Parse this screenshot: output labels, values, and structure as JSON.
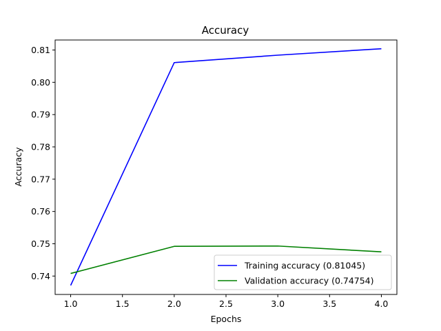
{
  "chart_data": {
    "type": "line",
    "title": "Accuracy",
    "xlabel": "Epochs",
    "ylabel": "Accuracy",
    "xlim": [
      0.85,
      4.15
    ],
    "ylim": [
      0.7343,
      0.8131
    ],
    "xticks": [
      1.0,
      1.5,
      2.0,
      2.5,
      3.0,
      3.5,
      4.0
    ],
    "xtick_labels": [
      "1.0",
      "1.5",
      "2.0",
      "2.5",
      "3.0",
      "3.5",
      "4.0"
    ],
    "yticks": [
      0.74,
      0.75,
      0.76,
      0.77,
      0.78,
      0.79,
      0.8,
      0.81
    ],
    "ytick_labels": [
      "0.74",
      "0.75",
      "0.76",
      "0.77",
      "0.78",
      "0.79",
      "0.80",
      "0.81"
    ],
    "grid": false,
    "legend_position": "lower-right",
    "x": [
      1,
      2,
      3,
      4
    ],
    "series": [
      {
        "name": "Training accuracy (0.81045)",
        "color": "#0000ff",
        "values": [
          0.7371,
          0.8061,
          0.8084,
          0.8104
        ]
      },
      {
        "name": "Validation accuracy (0.74754)",
        "color": "#008000",
        "values": [
          0.7408,
          0.7492,
          0.7493,
          0.7475
        ]
      }
    ]
  }
}
